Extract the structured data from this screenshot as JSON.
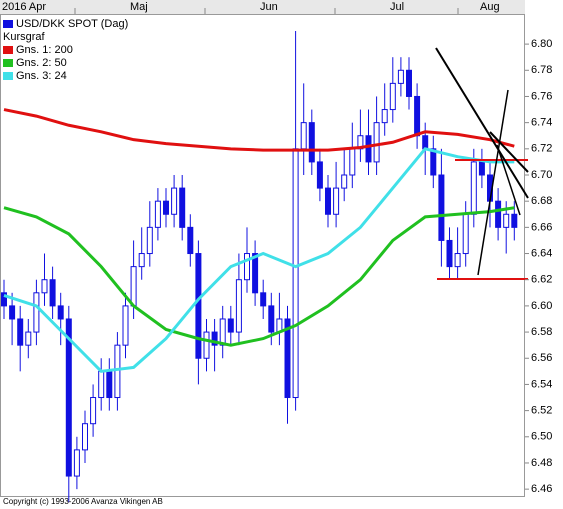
{
  "chart_data": {
    "type": "candlestick",
    "months": [
      "2016 Apr",
      "Maj",
      "Jun",
      "Jul",
      "Aug"
    ],
    "legend": {
      "instrument": "USD/DKK SPOT (Dag)",
      "subtitle": "Kursgraf"
    },
    "copyright": "Copyright (c) 1993-2006 Avanza Vikingen AB",
    "color": "#1010e0",
    "open": [
      6.61,
      6.6,
      6.59,
      6.57,
      6.58,
      6.61,
      6.62,
      6.6,
      6.59,
      6.47,
      6.49,
      6.51,
      6.53,
      6.55,
      6.53,
      6.57,
      6.6,
      6.63,
      6.64,
      6.66,
      6.68,
      6.67,
      6.69,
      6.66,
      6.64,
      6.56,
      6.58,
      6.57,
      6.59,
      6.58,
      6.62,
      6.64,
      6.61,
      6.6,
      6.58,
      6.59,
      6.53,
      6.72,
      6.74,
      6.71,
      6.69,
      6.67,
      6.69,
      6.7,
      6.72,
      6.73,
      6.71,
      6.74,
      6.75,
      6.77,
      6.78,
      6.76,
      6.73,
      6.72,
      6.7,
      6.65,
      6.63,
      6.64,
      6.67,
      6.71,
      6.7,
      6.68,
      6.66,
      6.67
    ],
    "high": [
      6.62,
      6.61,
      6.6,
      6.59,
      6.62,
      6.64,
      6.63,
      6.61,
      6.6,
      6.5,
      6.52,
      6.54,
      6.56,
      6.56,
      6.58,
      6.61,
      6.65,
      6.66,
      6.68,
      6.69,
      6.69,
      6.7,
      6.7,
      6.67,
      6.65,
      6.59,
      6.59,
      6.6,
      6.6,
      6.64,
      6.66,
      6.65,
      6.62,
      6.61,
      6.61,
      6.6,
      6.81,
      6.77,
      6.75,
      6.72,
      6.7,
      6.71,
      6.72,
      6.74,
      6.75,
      6.75,
      6.76,
      6.77,
      6.79,
      6.79,
      6.79,
      6.77,
      6.74,
      6.73,
      6.72,
      6.66,
      6.66,
      6.68,
      6.72,
      6.72,
      6.71,
      6.69,
      6.68,
      6.68
    ],
    "low": [
      6.59,
      6.57,
      6.55,
      6.56,
      6.57,
      6.6,
      6.59,
      6.57,
      6.45,
      6.46,
      6.48,
      6.5,
      6.52,
      6.52,
      6.52,
      6.56,
      6.59,
      6.62,
      6.63,
      6.65,
      6.66,
      6.66,
      6.65,
      6.63,
      6.54,
      6.55,
      6.55,
      6.56,
      6.57,
      6.57,
      6.61,
      6.6,
      6.59,
      6.57,
      6.57,
      6.51,
      6.52,
      6.7,
      6.7,
      6.68,
      6.66,
      6.66,
      6.68,
      6.69,
      6.71,
      6.7,
      6.7,
      6.73,
      6.74,
      6.76,
      6.75,
      6.72,
      6.7,
      6.69,
      6.63,
      6.62,
      6.62,
      6.63,
      6.66,
      6.69,
      6.66,
      6.65,
      6.64,
      6.65
    ],
    "close": [
      6.6,
      6.59,
      6.57,
      6.58,
      6.61,
      6.62,
      6.6,
      6.59,
      6.47,
      6.49,
      6.51,
      6.53,
      6.55,
      6.53,
      6.57,
      6.6,
      6.63,
      6.64,
      6.66,
      6.68,
      6.67,
      6.69,
      6.66,
      6.64,
      6.56,
      6.58,
      6.57,
      6.59,
      6.58,
      6.62,
      6.64,
      6.61,
      6.6,
      6.58,
      6.59,
      6.53,
      6.72,
      6.74,
      6.71,
      6.69,
      6.67,
      6.69,
      6.7,
      6.72,
      6.73,
      6.71,
      6.74,
      6.75,
      6.77,
      6.78,
      6.76,
      6.73,
      6.72,
      6.7,
      6.65,
      6.63,
      6.64,
      6.67,
      6.71,
      6.7,
      6.68,
      6.66,
      6.67,
      6.66
    ],
    "series": [
      {
        "name": "Gns. 1: 200",
        "color": "#e01010",
        "x": [
          0,
          4,
          8,
          12,
          16,
          20,
          24,
          28,
          32,
          36,
          40,
          44,
          48,
          52,
          56,
          60,
          63
        ],
        "values": [
          6.75,
          6.745,
          6.738,
          6.733,
          6.727,
          6.724,
          6.722,
          6.72,
          6.719,
          6.719,
          6.719,
          6.721,
          6.725,
          6.733,
          6.731,
          6.727,
          6.722
        ]
      },
      {
        "name": "Gns. 2: 50",
        "color": "#20c020",
        "x": [
          0,
          4,
          8,
          12,
          16,
          20,
          24,
          28,
          32,
          36,
          40,
          44,
          48,
          52,
          56,
          60,
          63
        ],
        "values": [
          6.675,
          6.668,
          6.655,
          6.63,
          6.6,
          6.582,
          6.575,
          6.57,
          6.575,
          6.585,
          6.6,
          6.62,
          6.65,
          6.668,
          6.67,
          6.672,
          6.675
        ]
      },
      {
        "name": "Gns. 3: 24",
        "color": "#40e0e8",
        "x": [
          0,
          4,
          8,
          12,
          16,
          20,
          24,
          28,
          32,
          36,
          40,
          44,
          48,
          52,
          56,
          60,
          63
        ],
        "values": [
          6.608,
          6.6,
          6.575,
          6.55,
          6.553,
          6.575,
          6.605,
          6.63,
          6.64,
          6.63,
          6.64,
          6.66,
          6.69,
          6.72,
          6.714,
          6.71,
          6.71
        ]
      }
    ],
    "ylim": [
      6.454,
      6.823
    ],
    "yticks": [
      6.46,
      6.48,
      {
        "value": 6.5,
        "label": "6.50"
      },
      6.52,
      6.54,
      6.56,
      6.58,
      {
        "value": 6.6,
        "label": "6.60"
      },
      6.62,
      6.64,
      6.66,
      6.68,
      {
        "value": 6.7,
        "label": "6.70"
      },
      6.72,
      6.74,
      6.76,
      6.78,
      {
        "value": 6.8,
        "label": "6.80"
      }
    ]
  }
}
